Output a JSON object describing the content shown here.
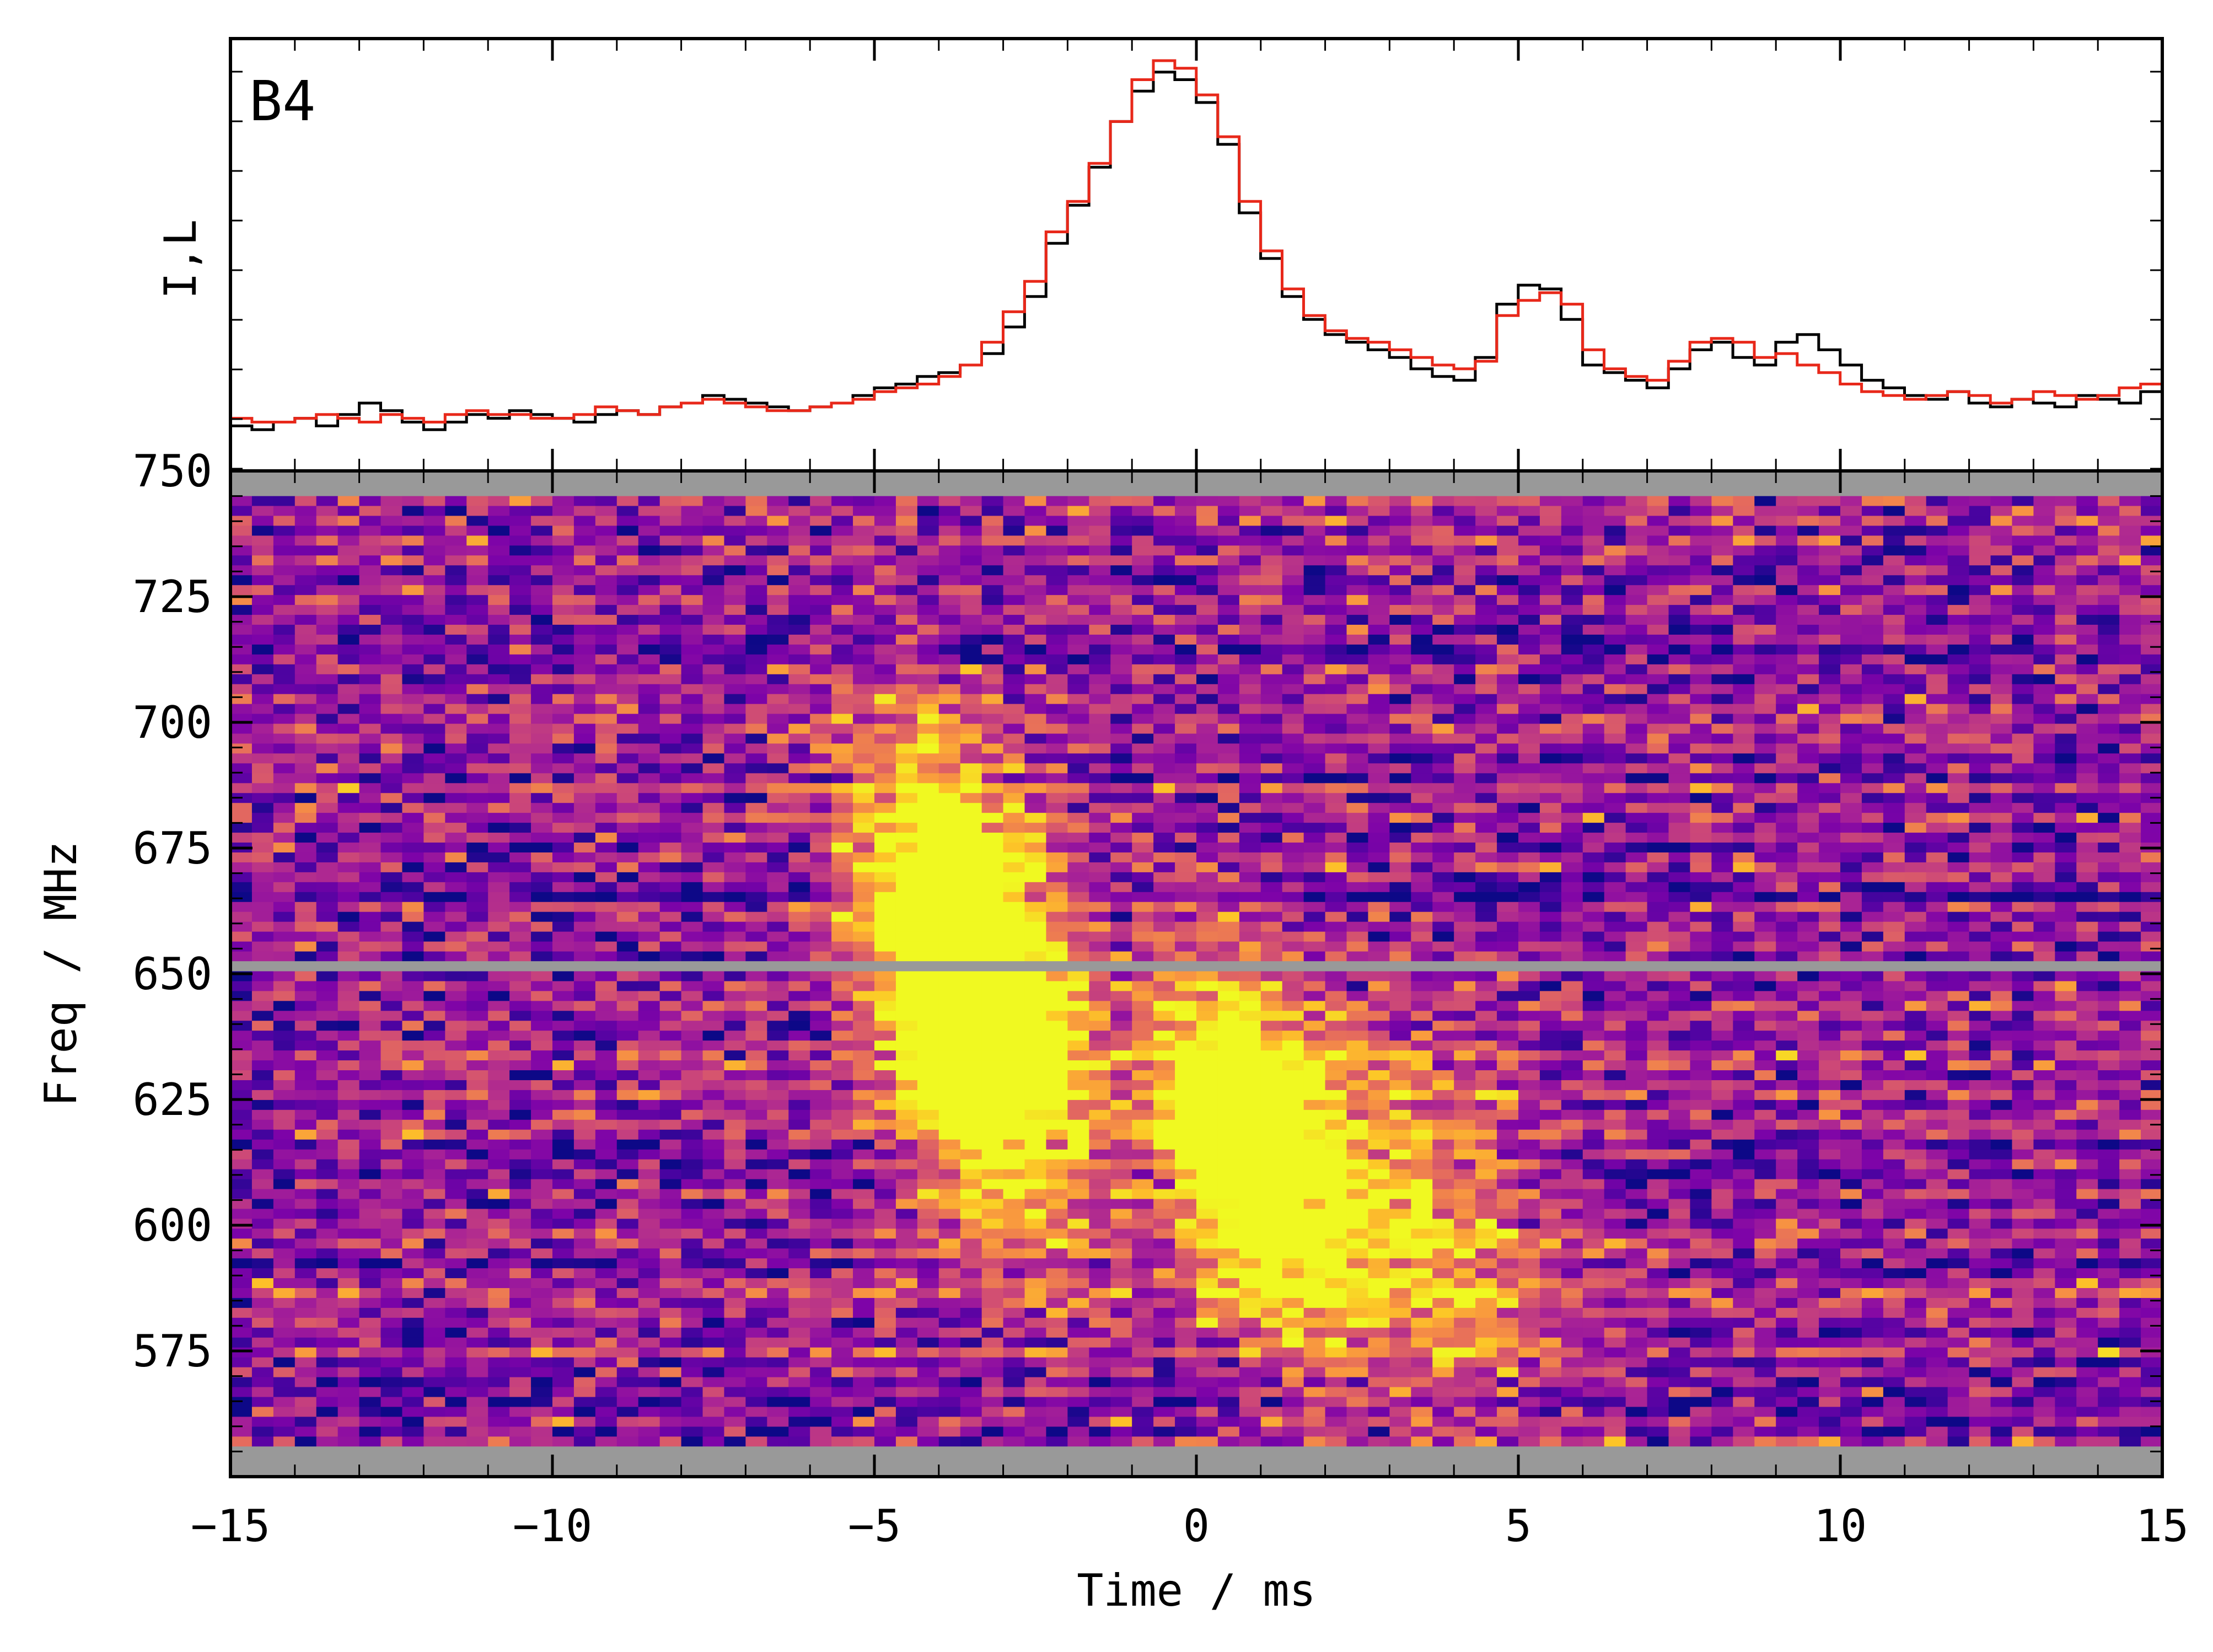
{
  "chart_data": [
    {
      "type": "line",
      "panel_label": "B4",
      "ylabel": "I,L",
      "xlim": [
        -15,
        15
      ],
      "x_start": -15,
      "bin_width_ms": 0.3333,
      "series": [
        {
          "color": "#000000",
          "values": [
            0.04,
            0.03,
            0.05,
            0.06,
            0.04,
            0.07,
            0.1,
            0.08,
            0.05,
            0.03,
            0.05,
            0.07,
            0.06,
            0.08,
            0.07,
            0.06,
            0.05,
            0.07,
            0.08,
            0.07,
            0.09,
            0.1,
            0.12,
            0.11,
            0.1,
            0.09,
            0.08,
            0.09,
            0.1,
            0.12,
            0.14,
            0.15,
            0.17,
            0.18,
            0.2,
            0.23,
            0.3,
            0.38,
            0.52,
            0.62,
            0.72,
            0.84,
            0.92,
            0.97,
            0.95,
            0.89,
            0.78,
            0.6,
            0.48,
            0.38,
            0.32,
            0.28,
            0.26,
            0.24,
            0.22,
            0.19,
            0.17,
            0.16,
            0.22,
            0.36,
            0.41,
            0.4,
            0.32,
            0.2,
            0.18,
            0.16,
            0.14,
            0.19,
            0.24,
            0.26,
            0.22,
            0.2,
            0.26,
            0.28,
            0.24,
            0.2,
            0.16,
            0.14,
            0.12,
            0.11,
            0.13,
            0.1,
            0.09,
            0.11,
            0.1,
            0.09,
            0.12,
            0.11,
            0.1,
            0.13,
            0.12,
            0.14,
            0.15,
            0.13,
            0.11,
            0.12,
            0.1,
            0.09,
            0.1,
            0.09,
            0.08,
            0.08,
            0.07,
            0.09,
            0.08,
            0.07,
            0.06,
            0.08,
            0.07,
            0.08,
            0.05,
            0.06,
            0.05,
            0.07,
            0.06,
            0.09,
            0.1,
            0.08,
            0.07,
            0.06,
            0.07,
            0.08
          ]
        },
        {
          "color": "#e8281a",
          "values": [
            0.06,
            0.05,
            0.05,
            0.06,
            0.07,
            0.06,
            0.05,
            0.07,
            0.06,
            0.05,
            0.07,
            0.08,
            0.07,
            0.07,
            0.06,
            0.06,
            0.07,
            0.09,
            0.08,
            0.07,
            0.09,
            0.1,
            0.11,
            0.1,
            0.09,
            0.08,
            0.08,
            0.09,
            0.1,
            0.11,
            0.13,
            0.14,
            0.15,
            0.17,
            0.2,
            0.26,
            0.34,
            0.42,
            0.55,
            0.63,
            0.73,
            0.84,
            0.95,
            1.0,
            0.98,
            0.91,
            0.8,
            0.63,
            0.5,
            0.4,
            0.33,
            0.29,
            0.27,
            0.26,
            0.24,
            0.22,
            0.2,
            0.19,
            0.21,
            0.33,
            0.37,
            0.39,
            0.36,
            0.24,
            0.19,
            0.17,
            0.16,
            0.21,
            0.26,
            0.27,
            0.26,
            0.22,
            0.23,
            0.2,
            0.18,
            0.15,
            0.13,
            0.12,
            0.11,
            0.12,
            0.13,
            0.12,
            0.1,
            0.11,
            0.13,
            0.12,
            0.11,
            0.12,
            0.14,
            0.15,
            0.16,
            0.13,
            0.1,
            0.11,
            0.12,
            0.14,
            0.12,
            0.11,
            0.1,
            0.09,
            0.09,
            0.08,
            0.08,
            0.1,
            0.09,
            0.08,
            0.07,
            0.08,
            0.09,
            0.07,
            0.06,
            0.07,
            0.08,
            0.09,
            0.09,
            0.1,
            0.11,
            0.1,
            0.09,
            0.1,
            0.11,
            0.12
          ]
        }
      ]
    },
    {
      "type": "heatmap",
      "colormap": "plasma",
      "xlabel": "Time / ms",
      "ylabel": "Freq / MHz",
      "xlim": [
        -15,
        15
      ],
      "ylim": [
        550,
        750
      ],
      "x_ticks": [
        -15,
        -10,
        -5,
        0,
        5,
        10,
        15
      ],
      "x_tick_labels": [
        "−15",
        "−10",
        "−5",
        "0",
        "5",
        "10",
        "15"
      ],
      "y_ticks": [
        575,
        600,
        625,
        650,
        675,
        700,
        725,
        750
      ],
      "y_tick_labels": [
        "575",
        "600",
        "625",
        "650",
        "675",
        "700",
        "725",
        "750"
      ],
      "freq_range_mhz": [
        556,
        745
      ],
      "masked_color": "#999999",
      "masked_bands_mhz": [
        [
          745,
          750
        ],
        [
          550,
          556
        ],
        [
          650.5,
          652.5
        ]
      ],
      "bursts": [
        {
          "t_ms": -3.5,
          "f_mhz": 648,
          "sigma_t_ms": 1.0,
          "sigma_f_mhz": 30,
          "drift_ms_per_mhz": 0.015,
          "amp": 1.6
        },
        {
          "t_ms": 0.8,
          "f_mhz": 615,
          "sigma_t_ms": 0.9,
          "sigma_f_mhz": 24,
          "drift_ms_per_mhz": 0.018,
          "amp": 1.25
        },
        {
          "t_ms": 3.5,
          "f_mhz": 600,
          "sigma_t_ms": 1.3,
          "sigma_f_mhz": 28,
          "drift_ms_per_mhz": 0.02,
          "amp": 0.55
        }
      ],
      "noise_level": 0.55,
      "n_time_bins": 90,
      "n_freq_channels": 96
    }
  ]
}
